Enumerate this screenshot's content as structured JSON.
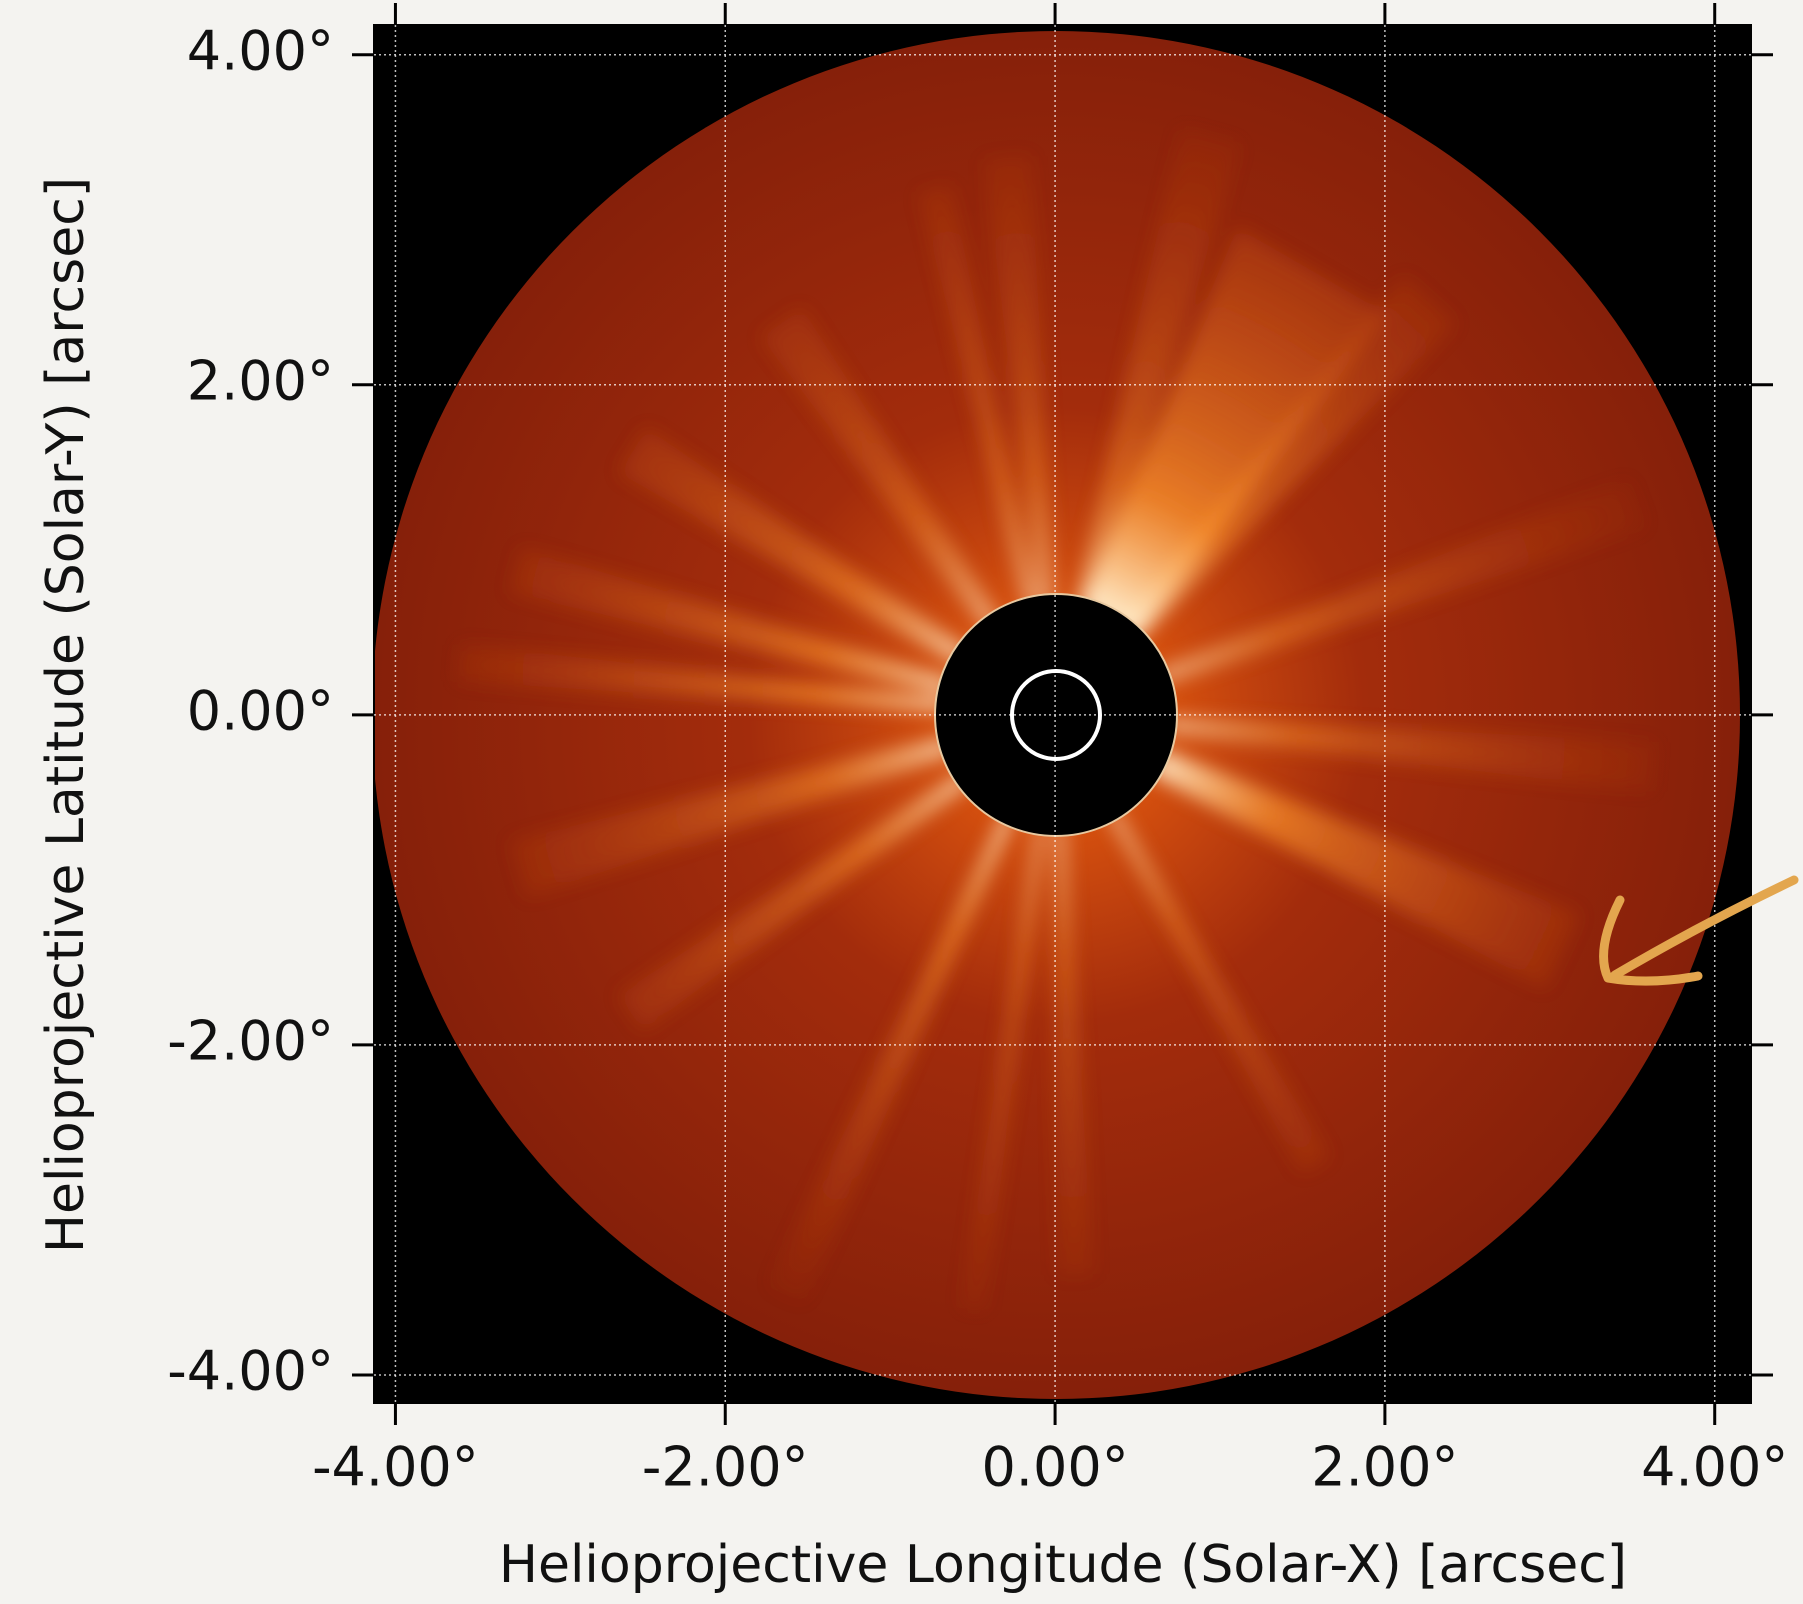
{
  "chart_data": {
    "type": "image",
    "x_label": "Helioprojective Longitude (Solar-X) [arcsec]",
    "y_label": "Helioprojective Latitude (Solar-Y) [arcsec]",
    "xlim": [
      -4.13,
      4.22
    ],
    "ylim": [
      -4.17,
      4.18
    ],
    "xticks": [
      {
        "value": -4,
        "label": "-4.00°"
      },
      {
        "value": -2,
        "label": "-2.00°"
      },
      {
        "value": 0,
        "label": "0.00°"
      },
      {
        "value": 2,
        "label": "2.00°"
      },
      {
        "value": 4,
        "label": "4.00°"
      }
    ],
    "yticks": [
      {
        "value": -4,
        "label": "-4.00°"
      },
      {
        "value": -2,
        "label": "-2.00°"
      },
      {
        "value": 0,
        "label": "0.00°"
      },
      {
        "value": 2,
        "label": "2.00°"
      },
      {
        "value": 4,
        "label": "4.00°"
      }
    ],
    "grid": true
  }
}
